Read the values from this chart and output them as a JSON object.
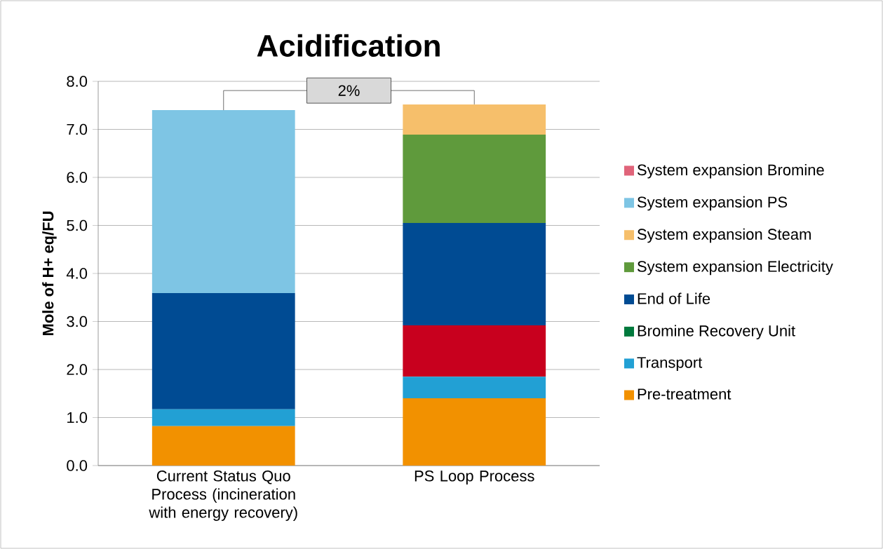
{
  "chart_data": {
    "type": "bar",
    "title": "Acidification",
    "ylabel": "Mole of H+ eq/FU",
    "stacked": true,
    "categories": [
      "Current Status Quo Process (incineration with energy recovery)",
      "PS Loop Process"
    ],
    "series": [
      {
        "name": "Pre-treatment",
        "color": "#f29100",
        "values": [
          0.82,
          1.4
        ]
      },
      {
        "name": "Transport",
        "color": "#22a0d4",
        "values": [
          0.35,
          0.45
        ]
      },
      {
        "color": "#c8001e",
        "values": [
          0,
          1.07
        ]
      },
      {
        "name": "Bromine Recovery Unit",
        "color": "#007a3d",
        "values": [
          0,
          0
        ]
      },
      {
        "name": "End of Life",
        "color": "#004b93",
        "values": [
          2.42,
          2.13
        ]
      },
      {
        "name": "System expansion Electricity",
        "color": "#5f9a3c",
        "values": [
          0,
          1.84
        ]
      },
      {
        "name": "System expansion Steam",
        "color": "#f6bf6b",
        "values": [
          0,
          0.63
        ]
      },
      {
        "name": "System expansion PS",
        "color": "#7ec5e4",
        "values": [
          3.81,
          0
        ]
      },
      {
        "name": "System expansion Bromine",
        "color": "#e0647a",
        "values": [
          0,
          0
        ]
      }
    ],
    "ylim": [
      0,
      8
    ],
    "yticks": [
      {
        "value": 0,
        "label": "0.0"
      },
      {
        "value": 1,
        "label": "1.0"
      },
      {
        "value": 2,
        "label": "2.0"
      },
      {
        "value": 3,
        "label": "3.0"
      },
      {
        "value": 4,
        "label": "4.0"
      },
      {
        "value": 5,
        "label": "5.0"
      },
      {
        "value": 6,
        "label": "6.0"
      },
      {
        "value": 7,
        "label": "7.0"
      },
      {
        "value": 8,
        "label": "8.0"
      }
    ],
    "grid": "y",
    "legend": "right",
    "annotations": [
      "2%"
    ]
  }
}
